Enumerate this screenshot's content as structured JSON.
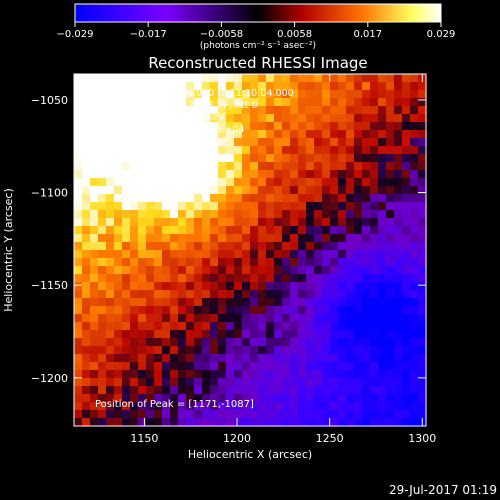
{
  "chart_data": {
    "type": "heatmap",
    "title": "Reconstructed RHESSI Image",
    "xlabel": "Heliocentric X (arcsec)",
    "ylabel": "Heliocentric Y (arcsec)",
    "xlim": [
      1112,
      1302
    ],
    "ylim": [
      -1226,
      -1036
    ],
    "x_ticks": [
      1150,
      1200,
      1250,
      1300
    ],
    "x_tick_labels": [
      "1150",
      "1200",
      "1250",
      "1300"
    ],
    "y_ticks": [
      -1050,
      -1100,
      -1150,
      -1200
    ],
    "y_tick_labels": [
      "−1050",
      "−1100",
      "−1150",
      "−1200"
    ],
    "colorbar": {
      "range": [
        -0.029,
        0.029
      ],
      "tick_labels": [
        "−0.029",
        "−0.017",
        "−0.0058",
        "0.0058",
        "0.017",
        "0.029"
      ],
      "unit_label": "(photons cm⁻² s⁻¹ asec⁻²)",
      "colors": [
        "#0000ff",
        "#8800ff",
        "#000000",
        "#cc0000",
        "#ff8800",
        "#ffff80",
        "#ffffff"
      ]
    },
    "info_lines": [
      "3-Aug-2015 11:00:04.000 to 11:10:04.000",
      "Detectors: 3F 5F 6F 7F 8F 9F, Att 0",
      "Energy Range: 3.0 - 6.0 keV",
      "Clean     Total counts: 7.18E+04"
    ],
    "peak_label": "Position of Peak = [1171,-1087]",
    "peak": {
      "x": 1171,
      "y": -1087
    },
    "timestamp": "29-Jul-2017 01:19"
  }
}
